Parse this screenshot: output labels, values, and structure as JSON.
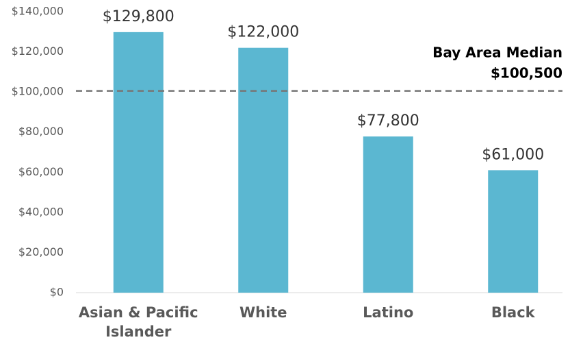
{
  "chart_data": {
    "type": "bar",
    "categories": [
      "Asian & Pacific Islander",
      "White",
      "Latino",
      "Black"
    ],
    "values": [
      129800,
      122000,
      77800,
      61000
    ],
    "value_labels": [
      "$129,800",
      "$122,000",
      "$77,800",
      "$61,000"
    ],
    "color": "#5bb7d1",
    "ylim": [
      0,
      140000
    ],
    "yticks": [
      {
        "value": 0,
        "label": "$0"
      },
      {
        "value": 20000,
        "label": "$20,000"
      },
      {
        "value": 40000,
        "label": "$40,000"
      },
      {
        "value": 60000,
        "label": "$60,000"
      },
      {
        "value": 80000,
        "label": "$80,000"
      },
      {
        "value": 100000,
        "label": "$100,000"
      },
      {
        "value": 120000,
        "label": "$120,000"
      },
      {
        "value": 140000,
        "label": "$140,000"
      }
    ],
    "grid": false,
    "reference_line": {
      "value": 100500,
      "name": "Bay Area Median",
      "label": "$100,500",
      "color": "#777777"
    }
  }
}
